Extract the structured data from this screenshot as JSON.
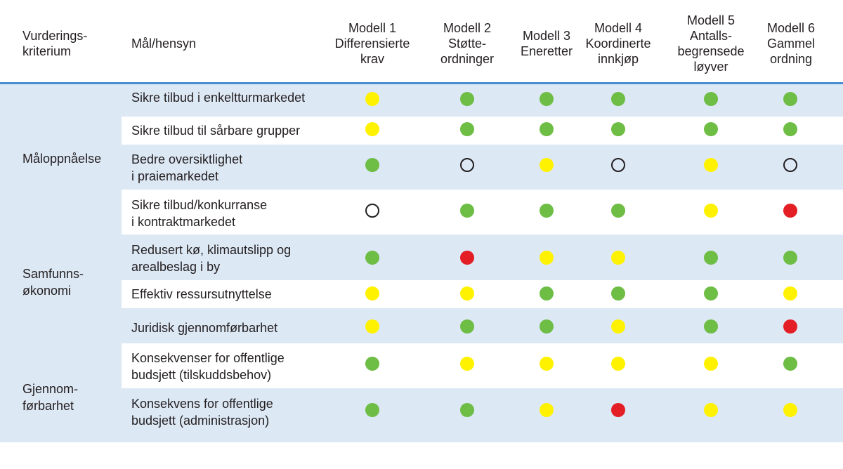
{
  "header": {
    "criterion": "Vurderings-\nkriterium",
    "goal": "Mål/hensyn",
    "models": [
      "Modell 1\nDifferensierte\nkrav",
      "Modell 2\nStøtte-\nordninger",
      "Modell 3\nEneretter",
      "Modell 4\nKoordinerte\ninnkjøp",
      "Modell 5\nAntalls-\nbegrensede\nløyver",
      "Modell 6\nGammel\nordning"
    ]
  },
  "criteria": [
    "Måloppnåelse",
    "Samfunns-\nøkonomi",
    "Gjennom-\nførbarhet"
  ],
  "rows": [
    {
      "label": "Sikre tilbud i enkeltturmarkedet",
      "ratings": [
        "yellow",
        "green",
        "green",
        "green",
        "green",
        "green"
      ]
    },
    {
      "label": "Sikre tilbud til sårbare grupper",
      "ratings": [
        "yellow",
        "green",
        "green",
        "green",
        "green",
        "green"
      ]
    },
    {
      "label": "Bedre oversiktlighet\ni praiemarkedet",
      "ratings": [
        "green",
        "empty",
        "yellow",
        "empty",
        "yellow",
        "empty"
      ]
    },
    {
      "label": "Sikre tilbud/konkurranse\ni kontraktmarkedet",
      "ratings": [
        "empty",
        "green",
        "green",
        "green",
        "yellow",
        "red"
      ]
    },
    {
      "label": "Redusert kø, klimautslipp og\narealbeslag i by",
      "ratings": [
        "green",
        "red",
        "yellow",
        "yellow",
        "green",
        "green"
      ]
    },
    {
      "label": "Effektiv ressursutnyttelse",
      "ratings": [
        "yellow",
        "yellow",
        "green",
        "green",
        "green",
        "yellow"
      ]
    },
    {
      "label": "Juridisk gjennomførbarhet",
      "ratings": [
        "yellow",
        "green",
        "green",
        "yellow",
        "green",
        "red"
      ]
    },
    {
      "label": "Konsekvenser for offentlige\nbudsjett (tilskuddsbehov)",
      "ratings": [
        "green",
        "yellow",
        "yellow",
        "yellow",
        "yellow",
        "green"
      ]
    },
    {
      "label": "Konsekvens for offentlige\nbudsjett (administrasjon)",
      "ratings": [
        "green",
        "green",
        "yellow",
        "red",
        "yellow",
        "yellow"
      ]
    }
  ],
  "colors": {
    "green": "#6ebd45",
    "yellow": "#fff200",
    "red": "#e31e24",
    "band": "#dde8f5",
    "rule": "#4a8fcf"
  }
}
